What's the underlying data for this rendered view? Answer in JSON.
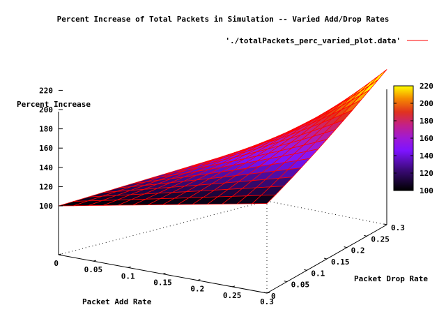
{
  "chart_data": {
    "type": "surface3d",
    "title": "Percent Increase of Total Packets in Simulation -- Varied Add/Drop Rates",
    "legend_label": "'./totalPackets_perc_varied_plot.data'",
    "legend_color": "#ff0000",
    "xlabel": "Packet Add Rate",
    "ylabel": "Packet Drop Rate",
    "zlabel": "Percent Increase",
    "xlim": [
      0,
      0.3
    ],
    "ylim": [
      0,
      0.3
    ],
    "zlim": [
      100,
      220
    ],
    "x_ticks": [
      "0",
      "0.05",
      "0.1",
      "0.15",
      "0.2",
      "0.25",
      "0.3"
    ],
    "y_ticks": [
      "0",
      "0.05",
      "0.1",
      "0.15",
      "0.2",
      "0.25",
      "0.3"
    ],
    "z_ticks": [
      "100",
      "120",
      "140",
      "160",
      "180",
      "200",
      "220"
    ],
    "colorbar_ticks": [
      "100",
      "120",
      "140",
      "160",
      "180",
      "200",
      "220"
    ],
    "grid": false,
    "surface_points": [
      {
        "x": 0,
        "y": 0,
        "z": 100
      },
      {
        "x": 0.3,
        "y": 0,
        "z": 101
      },
      {
        "x": 0,
        "y": 0.3,
        "z": 160
      },
      {
        "x": 0.3,
        "y": 0.3,
        "z": 220
      }
    ],
    "colors": {
      "mesh_line": "#ff0000",
      "axis": "#000000"
    }
  }
}
